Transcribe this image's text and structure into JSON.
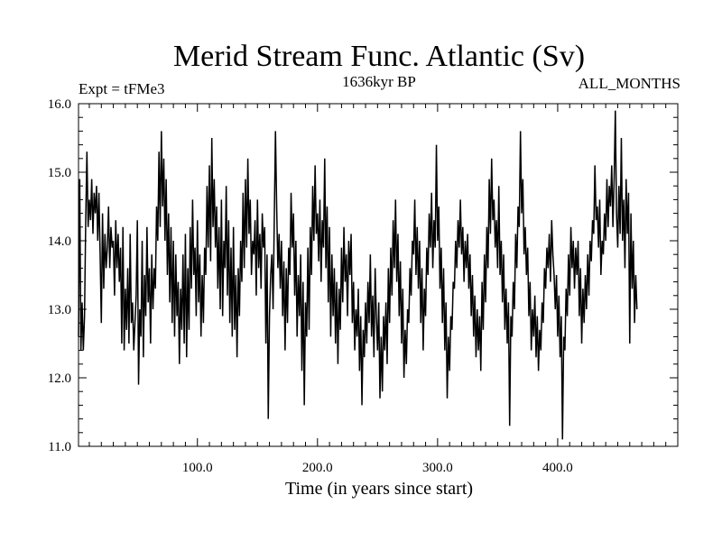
{
  "chart_data": {
    "type": "line",
    "title": "Merid Stream Func. Atlantic (Sv)",
    "annotations": {
      "left": "Expt = tFMe3",
      "center": "1636kyr BP",
      "right": "ALL_MONTHS"
    },
    "xlabel": "Time (in years since start)",
    "ylabel": "",
    "xlim": [
      1,
      500
    ],
    "ylim": [
      11.0,
      16.0
    ],
    "x_ticks": [
      100,
      200,
      300,
      400
    ],
    "x_tick_labels": [
      "100.0",
      "200.0",
      "300.0",
      "400.0"
    ],
    "y_ticks": [
      11,
      12,
      13,
      14,
      15,
      16
    ],
    "y_tick_labels": [
      "11.0",
      "12.0",
      "13.0",
      "14.0",
      "15.0",
      "16.0"
    ],
    "grid": false,
    "series": [
      {
        "name": "Merid Stream Func. Atlantic",
        "color": "#000000",
        "x_start": 1,
        "x_step": 1,
        "values": [
          12.6,
          14.9,
          12.4,
          13.1,
          12.4,
          12.9,
          14.3,
          15.3,
          14.2,
          14.6,
          14.3,
          14.9,
          14.1,
          14.7,
          14.4,
          14.8,
          14.0,
          14.7,
          13.8,
          12.8,
          14.4,
          13.3,
          14.1,
          13.6,
          13.9,
          14.5,
          13.6,
          14.2,
          13.9,
          14.0,
          13.2,
          14.3,
          13.6,
          14.1,
          13.4,
          13.9,
          12.5,
          14.2,
          12.4,
          13.3,
          12.7,
          13.6,
          12.5,
          14.1,
          12.8,
          13.1,
          12.4,
          12.8,
          13.2,
          14.3,
          11.9,
          13.0,
          12.6,
          14.0,
          12.3,
          13.5,
          12.9,
          14.2,
          13.1,
          13.6,
          12.5,
          13.8,
          13.0,
          13.6,
          13.3,
          14.5,
          14.0,
          15.3,
          14.2,
          15.6,
          14.5,
          15.2,
          14.0,
          14.9,
          13.5,
          14.4,
          13.1,
          14.2,
          12.8,
          14.0,
          12.6,
          13.8,
          12.9,
          13.4,
          12.2,
          13.3,
          12.7,
          13.8,
          12.5,
          14.1,
          12.3,
          13.6,
          12.7,
          14.2,
          13.3,
          14.6,
          13.5,
          13.9,
          12.9,
          14.3,
          13.1,
          13.8,
          12.6,
          13.5,
          12.8,
          13.9,
          13.5,
          14.8,
          13.9,
          15.1,
          13.7,
          15.5,
          14.2,
          14.9,
          13.9,
          14.5,
          13.3,
          14.2,
          13.0,
          14.6,
          12.9,
          14.0,
          13.6,
          14.8,
          13.2,
          14.3,
          12.8,
          13.9,
          12.6,
          14.2,
          12.7,
          13.5,
          12.3,
          13.6,
          12.9,
          14.0,
          13.4,
          14.7,
          13.6,
          14.9,
          13.9,
          15.2,
          14.1,
          14.6,
          13.5,
          14.0,
          13.8,
          14.3,
          13.2,
          14.6,
          13.6,
          14.1,
          13.3,
          14.4,
          13.9,
          14.2,
          12.5,
          13.8,
          11.4,
          12.9,
          13.5,
          13.8,
          13.0,
          14.3,
          15.6,
          14.5,
          13.6,
          14.1,
          13.3,
          14.0,
          12.9,
          13.7,
          12.4,
          13.6,
          12.8,
          13.9,
          13.5,
          14.7,
          13.9,
          14.4,
          13.2,
          14.0,
          12.6,
          13.5,
          12.9,
          13.8,
          12.1,
          13.4,
          11.6,
          13.1,
          12.6,
          13.9,
          12.7,
          14.2,
          13.5,
          14.8,
          14.0,
          15.1,
          14.1,
          14.4,
          13.7,
          14.6,
          13.4,
          14.3,
          13.9,
          15.2,
          13.6,
          14.5,
          13.1,
          14.2,
          12.6,
          13.8,
          12.9,
          13.6,
          12.5,
          13.4,
          12.2,
          13.3,
          12.7,
          13.9,
          13.1,
          14.2,
          13.4,
          13.8,
          12.9,
          14.0,
          13.5,
          14.1,
          12.8,
          13.4,
          12.4,
          13.0,
          12.6,
          13.3,
          12.1,
          12.9,
          11.6,
          12.7,
          12.3,
          13.1,
          12.5,
          13.4,
          12.8,
          13.8,
          12.6,
          13.2,
          12.3,
          13.6,
          12.9,
          12.4,
          13.1,
          11.7,
          12.6,
          11.8,
          12.9,
          12.4,
          13.1,
          12.2,
          13.6,
          12.8,
          13.9,
          13.2,
          14.3,
          13.6,
          14.6,
          13.4,
          14.1,
          12.9,
          13.7,
          12.5,
          13.3,
          12.0,
          12.7,
          12.2,
          13.0,
          12.8,
          13.6,
          13.2,
          14.0,
          13.8,
          14.6,
          13.5,
          14.2,
          13.3,
          14.0,
          12.8,
          13.6,
          12.4,
          13.3,
          12.9,
          13.9,
          13.5,
          14.4,
          13.9,
          14.7,
          13.6,
          14.3,
          13.9,
          15.4,
          14.0,
          14.5,
          13.3,
          13.9,
          12.8,
          13.6,
          12.4,
          13.1,
          11.7,
          12.6,
          12.1,
          12.9,
          12.7,
          13.4,
          13.3,
          14.0,
          13.6,
          14.3,
          13.9,
          14.6,
          13.8,
          14.2,
          13.4,
          14.0,
          13.6,
          14.1,
          13.3,
          13.8,
          12.9,
          13.5,
          12.6,
          13.2,
          12.3,
          13.0,
          12.4,
          12.9,
          12.1,
          13.4,
          12.7,
          13.8,
          13.1,
          14.2,
          13.6,
          14.9,
          14.1,
          15.2,
          14.3,
          14.6,
          13.9,
          14.3,
          13.6,
          14.8,
          13.5,
          14.0,
          13.1,
          13.8,
          12.7,
          13.3,
          12.5,
          13.1,
          11.3,
          12.9,
          12.6,
          13.4,
          13.0,
          14.1,
          13.6,
          14.5,
          14.2,
          15.6,
          14.4,
          14.9,
          13.8,
          14.2,
          13.5,
          13.9,
          12.9,
          13.4,
          12.4,
          13.0,
          12.6,
          13.2,
          12.3,
          12.9,
          12.1,
          12.7,
          12.4,
          13.1,
          12.8,
          13.6,
          13.3,
          13.9,
          13.6,
          14.1,
          13.4,
          14.3,
          13.8,
          13.5,
          13.0,
          13.5,
          12.6,
          13.2,
          12.3,
          12.9,
          11.1,
          12.6,
          12.4,
          13.3,
          12.9,
          13.8,
          13.2,
          14.2,
          13.6,
          14.0,
          13.3,
          13.9,
          13.5,
          14.0,
          12.9,
          13.6,
          12.5,
          13.3,
          12.8,
          13.5,
          13.0,
          13.8,
          13.2,
          14.0,
          13.7,
          14.3,
          14.1,
          15.1,
          14.3,
          14.5,
          13.9,
          14.6,
          13.5,
          14.0,
          13.8,
          14.4,
          14.0,
          14.9,
          14.2,
          14.8,
          14.5,
          15.1,
          14.2,
          14.9,
          15.9,
          14.4,
          13.9,
          14.8,
          14.1,
          15.5,
          14.0,
          14.6,
          13.6,
          14.9,
          14.1,
          14.7,
          12.5,
          14.4,
          13.3,
          14.0,
          12.8,
          13.5,
          13.0
        ]
      }
    ]
  }
}
